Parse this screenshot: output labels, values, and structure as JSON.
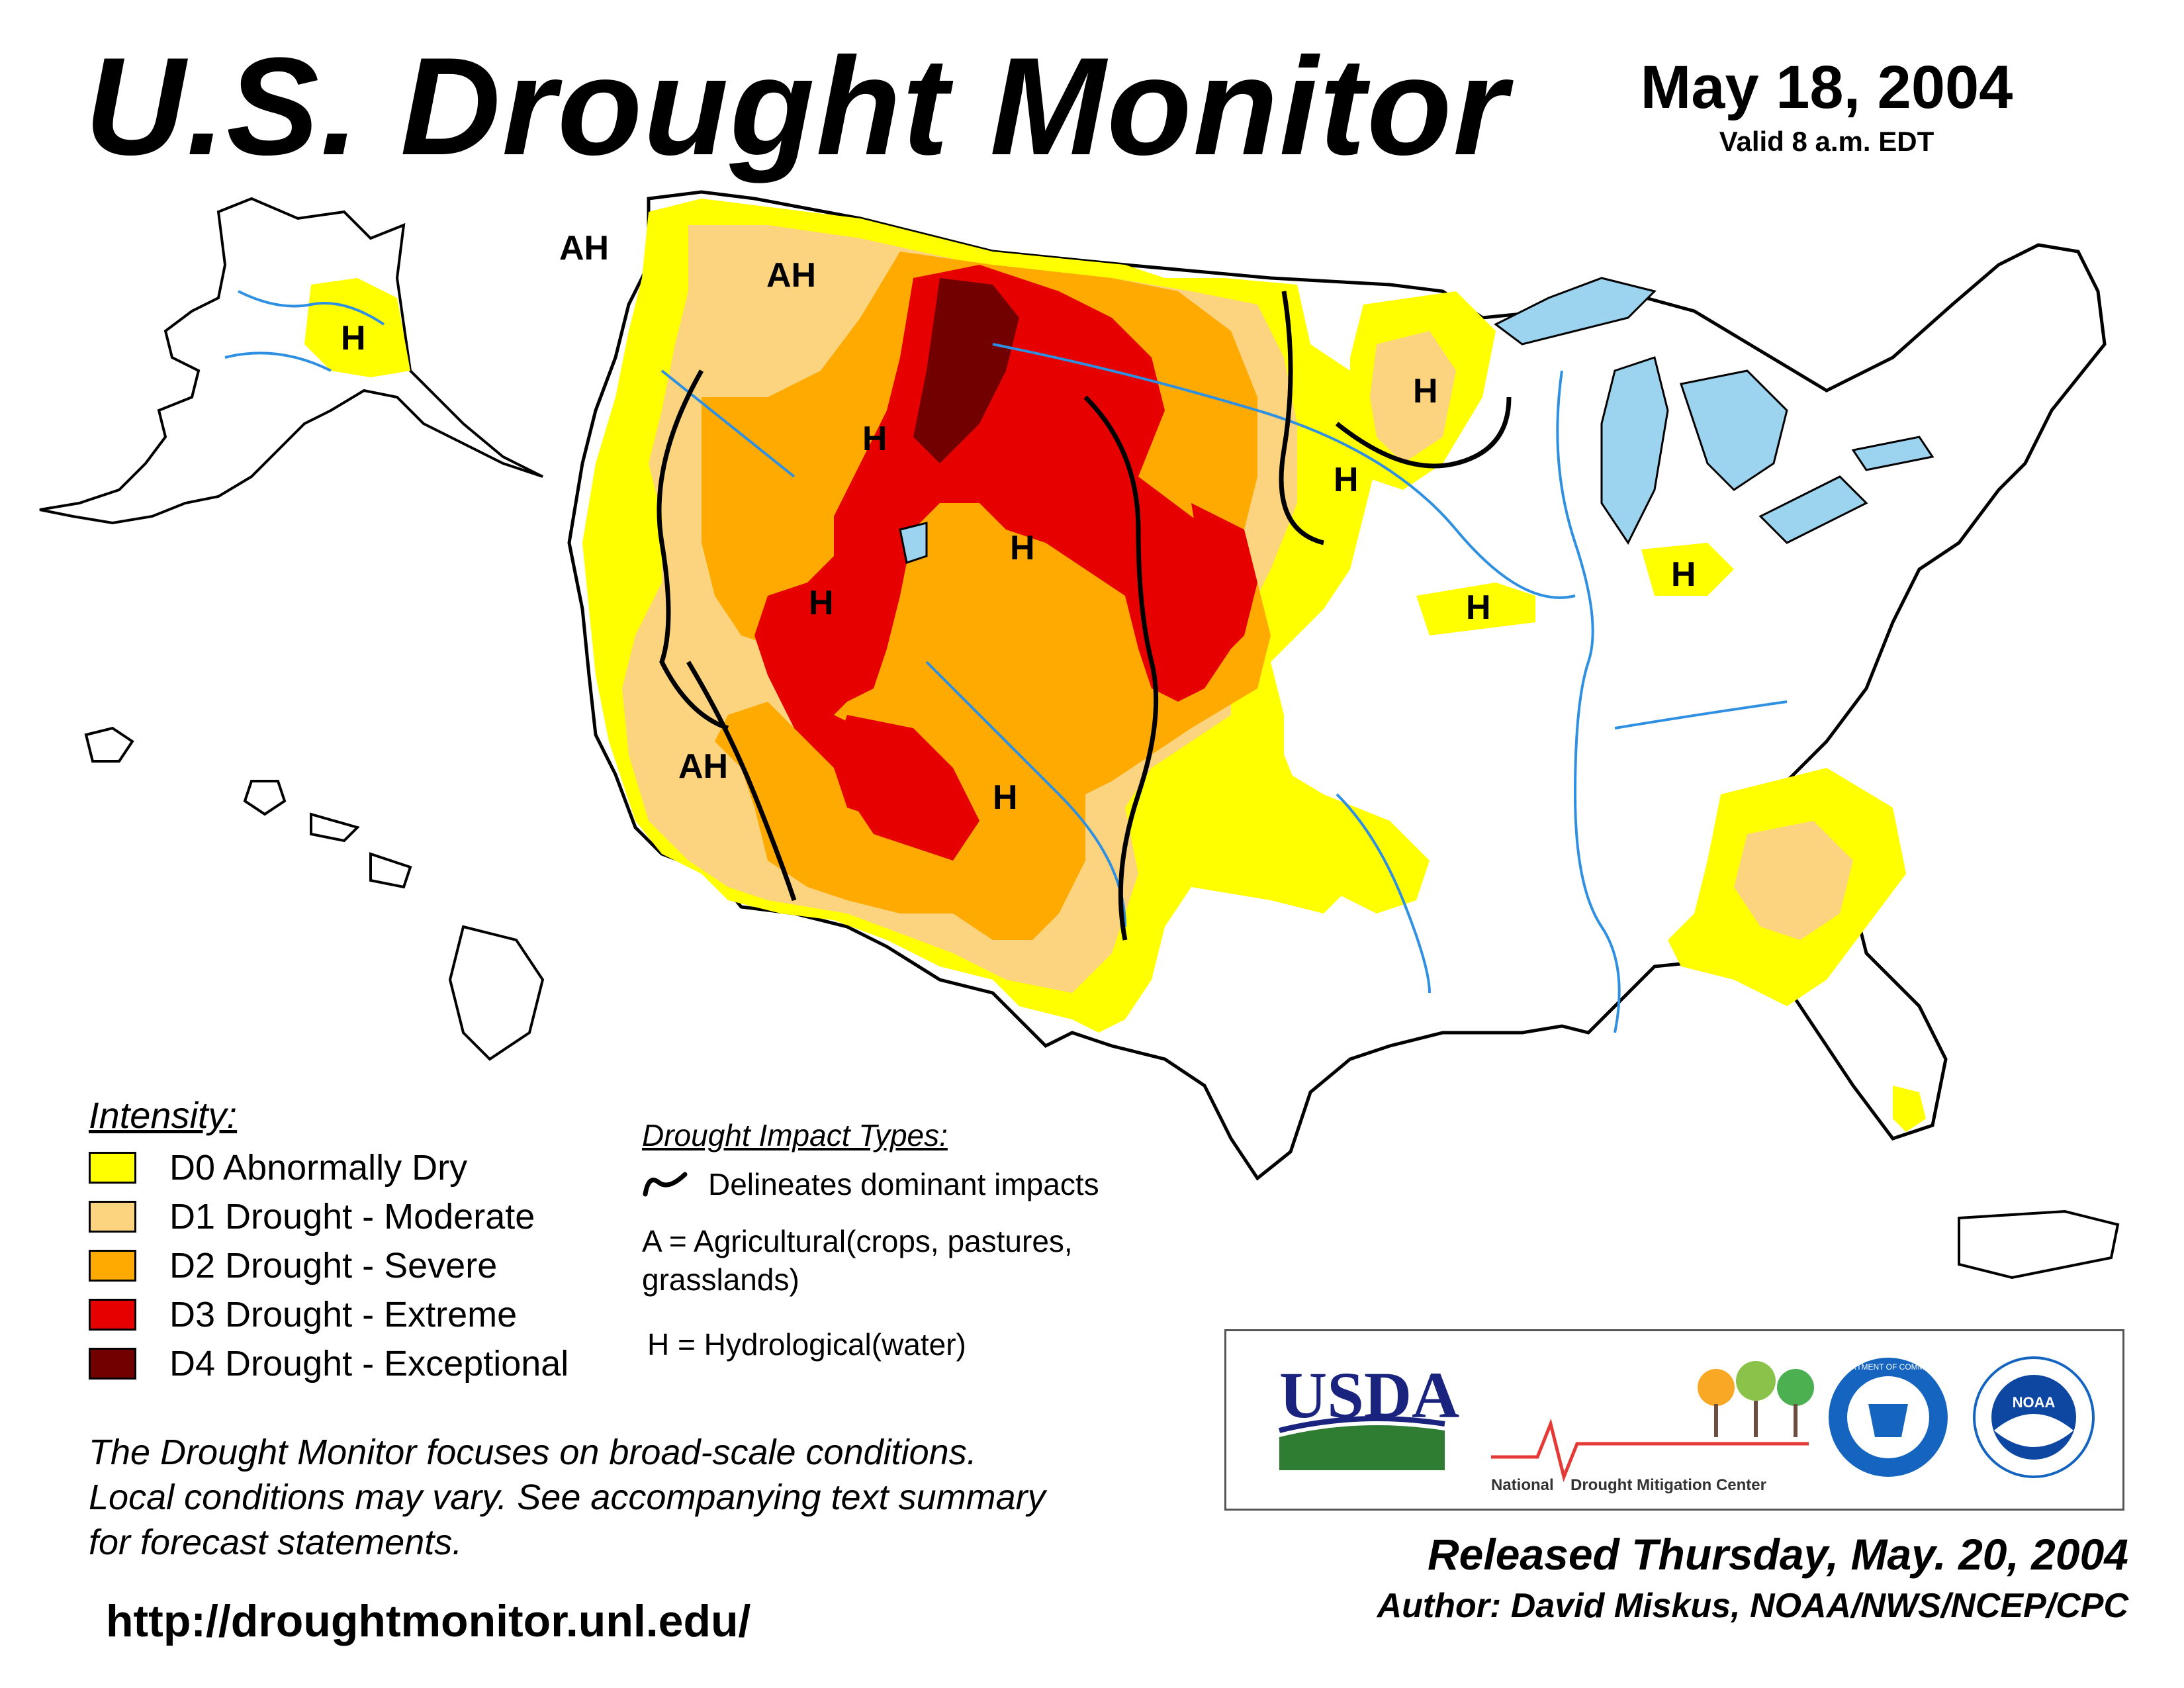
{
  "header": {
    "title": "U.S. Drought Monitor",
    "date": "May 18, 2004",
    "valid": "Valid 8 a.m. EDT"
  },
  "legend": {
    "title": "Intensity:",
    "items": [
      {
        "code": "D0",
        "label": "D0 Abnormally Dry",
        "color": "#ffff00"
      },
      {
        "code": "D1",
        "label": "D1 Drought - Moderate",
        "color": "#fcd37f"
      },
      {
        "code": "D2",
        "label": "D2 Drought - Severe",
        "color": "#ffaa00"
      },
      {
        "code": "D3",
        "label": "D3 Drought - Extreme",
        "color": "#e60000"
      },
      {
        "code": "D4",
        "label": "D4 Drought - Exceptional",
        "color": "#730000"
      }
    ]
  },
  "impacts": {
    "title": "Drought Impact Types:",
    "line_label": "Delineates dominant impacts",
    "agricultural": "A = Agricultural(crops, pastures, grasslands)",
    "hydrological": "H = Hydrological(water)"
  },
  "map_labels": {
    "ah_nw": "AH",
    "ah_id": "AH",
    "ah_ca": "AH",
    "h_ak": "H",
    "h_id": "H",
    "h_nv": "H",
    "h_wy": "H",
    "h_nm": "H",
    "h_mn": "H",
    "h_mn2": "H",
    "h_il": "H",
    "h_mi": "H"
  },
  "disclaimer": {
    "line1": "The Drought Monitor focuses on broad-scale conditions.",
    "line2": "Local conditions may vary. See accompanying text summary",
    "line3": "for forecast statements."
  },
  "url": "http://droughtmonitor.unl.edu/",
  "logos": {
    "usda": "USDA",
    "ndmc_left": "National",
    "ndmc_right": "Drought Mitigation Center",
    "doc": "DEPARTMENT OF COMMERCE",
    "noaa": "NOAA"
  },
  "footer": {
    "released": "Released Thursday, May. 20, 2004",
    "author": "Author: David Miskus, NOAA/NWS/NCEP/CPC"
  },
  "colors": {
    "water": "#9cd3ee",
    "river": "#2f8fe0",
    "border": "#000000",
    "county": "#a0a0a0"
  }
}
